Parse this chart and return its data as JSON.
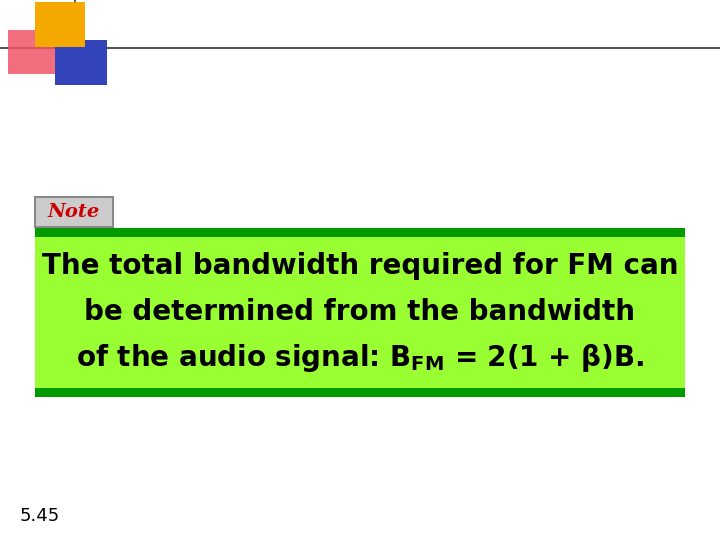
{
  "bg_color": "#ffffff",
  "slide_number": "5.45",
  "slide_number_fontsize": 13,
  "note_label": "Note",
  "note_label_color": "#cc0000",
  "note_label_fontsize": 14,
  "note_box_facecolor": "#cccccc",
  "note_box_edgecolor": "#888888",
  "green_bar_color": "#009900",
  "light_green_color": "#99ff33",
  "main_text_line1": "The total bandwidth required for FM can",
  "main_text_line2": "be determined from the bandwidth",
  "main_text_line3": "of the audio signal: $\\mathbf{B_{FM}}$ = 2(1 + $\\mathbf{\\beta}$)B.",
  "main_text_color": "#000000",
  "main_text_fontsize": 20,
  "logo_yellow": "#f5a800",
  "logo_red_pink": "#ee5566",
  "logo_blue": "#3344bb",
  "logo_line_color": "#333333"
}
